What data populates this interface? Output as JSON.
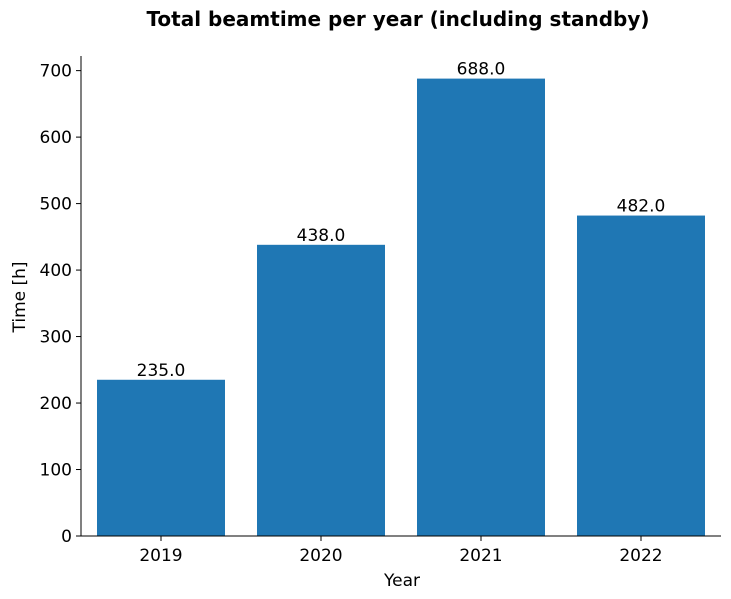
{
  "chart_data": {
    "type": "bar",
    "title": "Total beamtime per year (including standby)",
    "xlabel": "Year",
    "ylabel": "Time [h]",
    "categories": [
      "2019",
      "2020",
      "2021",
      "2022"
    ],
    "values": [
      235.0,
      438.0,
      688.0,
      482.0
    ],
    "data_labels": [
      "235.0",
      "438.0",
      "688.0",
      "482.0"
    ],
    "ylim": [
      0,
      722
    ],
    "yticks": [
      0,
      100,
      200,
      300,
      400,
      500,
      600,
      700
    ],
    "grid": false,
    "bar_color": "#1f77b4"
  }
}
